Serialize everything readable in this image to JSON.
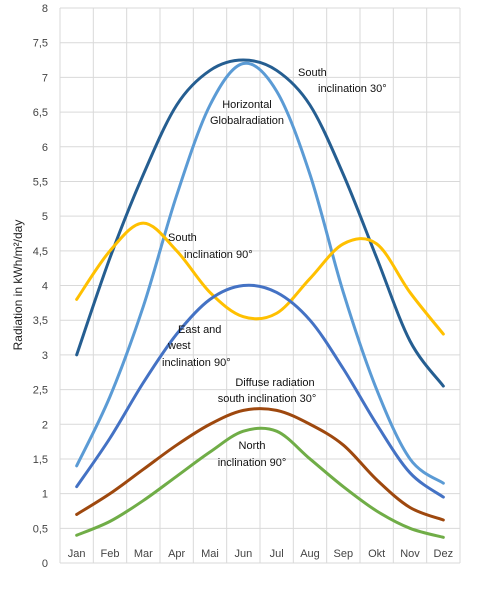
{
  "chart_data": {
    "type": "line",
    "y_label": "Radiation in kWh/m²/day",
    "categories": [
      "Jan",
      "Feb",
      "Mar",
      "Apr",
      "Mai",
      "Jun",
      "Jul",
      "Aug",
      "Sep",
      "Okt",
      "Nov",
      "Dez"
    ],
    "ylim": [
      0,
      8
    ],
    "yticks": [
      0,
      {
        "value": 0.5,
        "label": "0,5"
      },
      1,
      {
        "value": 1.5,
        "label": "1,5"
      },
      2,
      {
        "value": 2.5,
        "label": "2,5"
      },
      3,
      {
        "value": 3.5,
        "label": "3,5"
      },
      4,
      {
        "value": 4.5,
        "label": "4,5"
      },
      5,
      {
        "value": 5.5,
        "label": "5,5"
      },
      6,
      {
        "value": 6.5,
        "label": "6,5"
      },
      7,
      {
        "value": 7.5,
        "label": "7,5"
      },
      8
    ],
    "grid": true,
    "series": [
      {
        "name": [
          "South",
          "inclination 30°"
        ],
        "color": "#255e91",
        "values": [
          3.0,
          4.4,
          5.6,
          6.6,
          7.1,
          7.25,
          7.1,
          6.6,
          5.6,
          4.4,
          3.2,
          2.55
        ]
      },
      {
        "name": [
          "Horizontal",
          "Globalradiation"
        ],
        "color": "#5b9bd5",
        "values": [
          1.4,
          2.4,
          3.7,
          5.3,
          6.6,
          7.2,
          6.8,
          5.6,
          3.9,
          2.5,
          1.5,
          1.15
        ]
      },
      {
        "name": [
          "South",
          "inclination 90°"
        ],
        "color": "#ffc000",
        "values": [
          3.8,
          4.5,
          4.9,
          4.5,
          3.9,
          3.55,
          3.6,
          4.1,
          4.6,
          4.6,
          3.9,
          3.3
        ]
      },
      {
        "name": [
          "East and",
          "west",
          "inclination 90°"
        ],
        "color": "#4472c4",
        "values": [
          1.1,
          1.8,
          2.6,
          3.3,
          3.8,
          4.0,
          3.9,
          3.5,
          2.8,
          2.0,
          1.3,
          0.95
        ]
      },
      {
        "name": [
          "Diffuse radiation",
          "south inclination 30°"
        ],
        "color": "#9e480e",
        "values": [
          0.7,
          1.0,
          1.35,
          1.7,
          2.0,
          2.2,
          2.2,
          2.0,
          1.7,
          1.2,
          0.8,
          0.62
        ]
      },
      {
        "name": [
          "North",
          "inclination 90°"
        ],
        "color": "#70ad47",
        "values": [
          0.4,
          0.6,
          0.9,
          1.25,
          1.6,
          1.9,
          1.9,
          1.5,
          1.1,
          0.75,
          0.5,
          0.37
        ]
      }
    ]
  }
}
